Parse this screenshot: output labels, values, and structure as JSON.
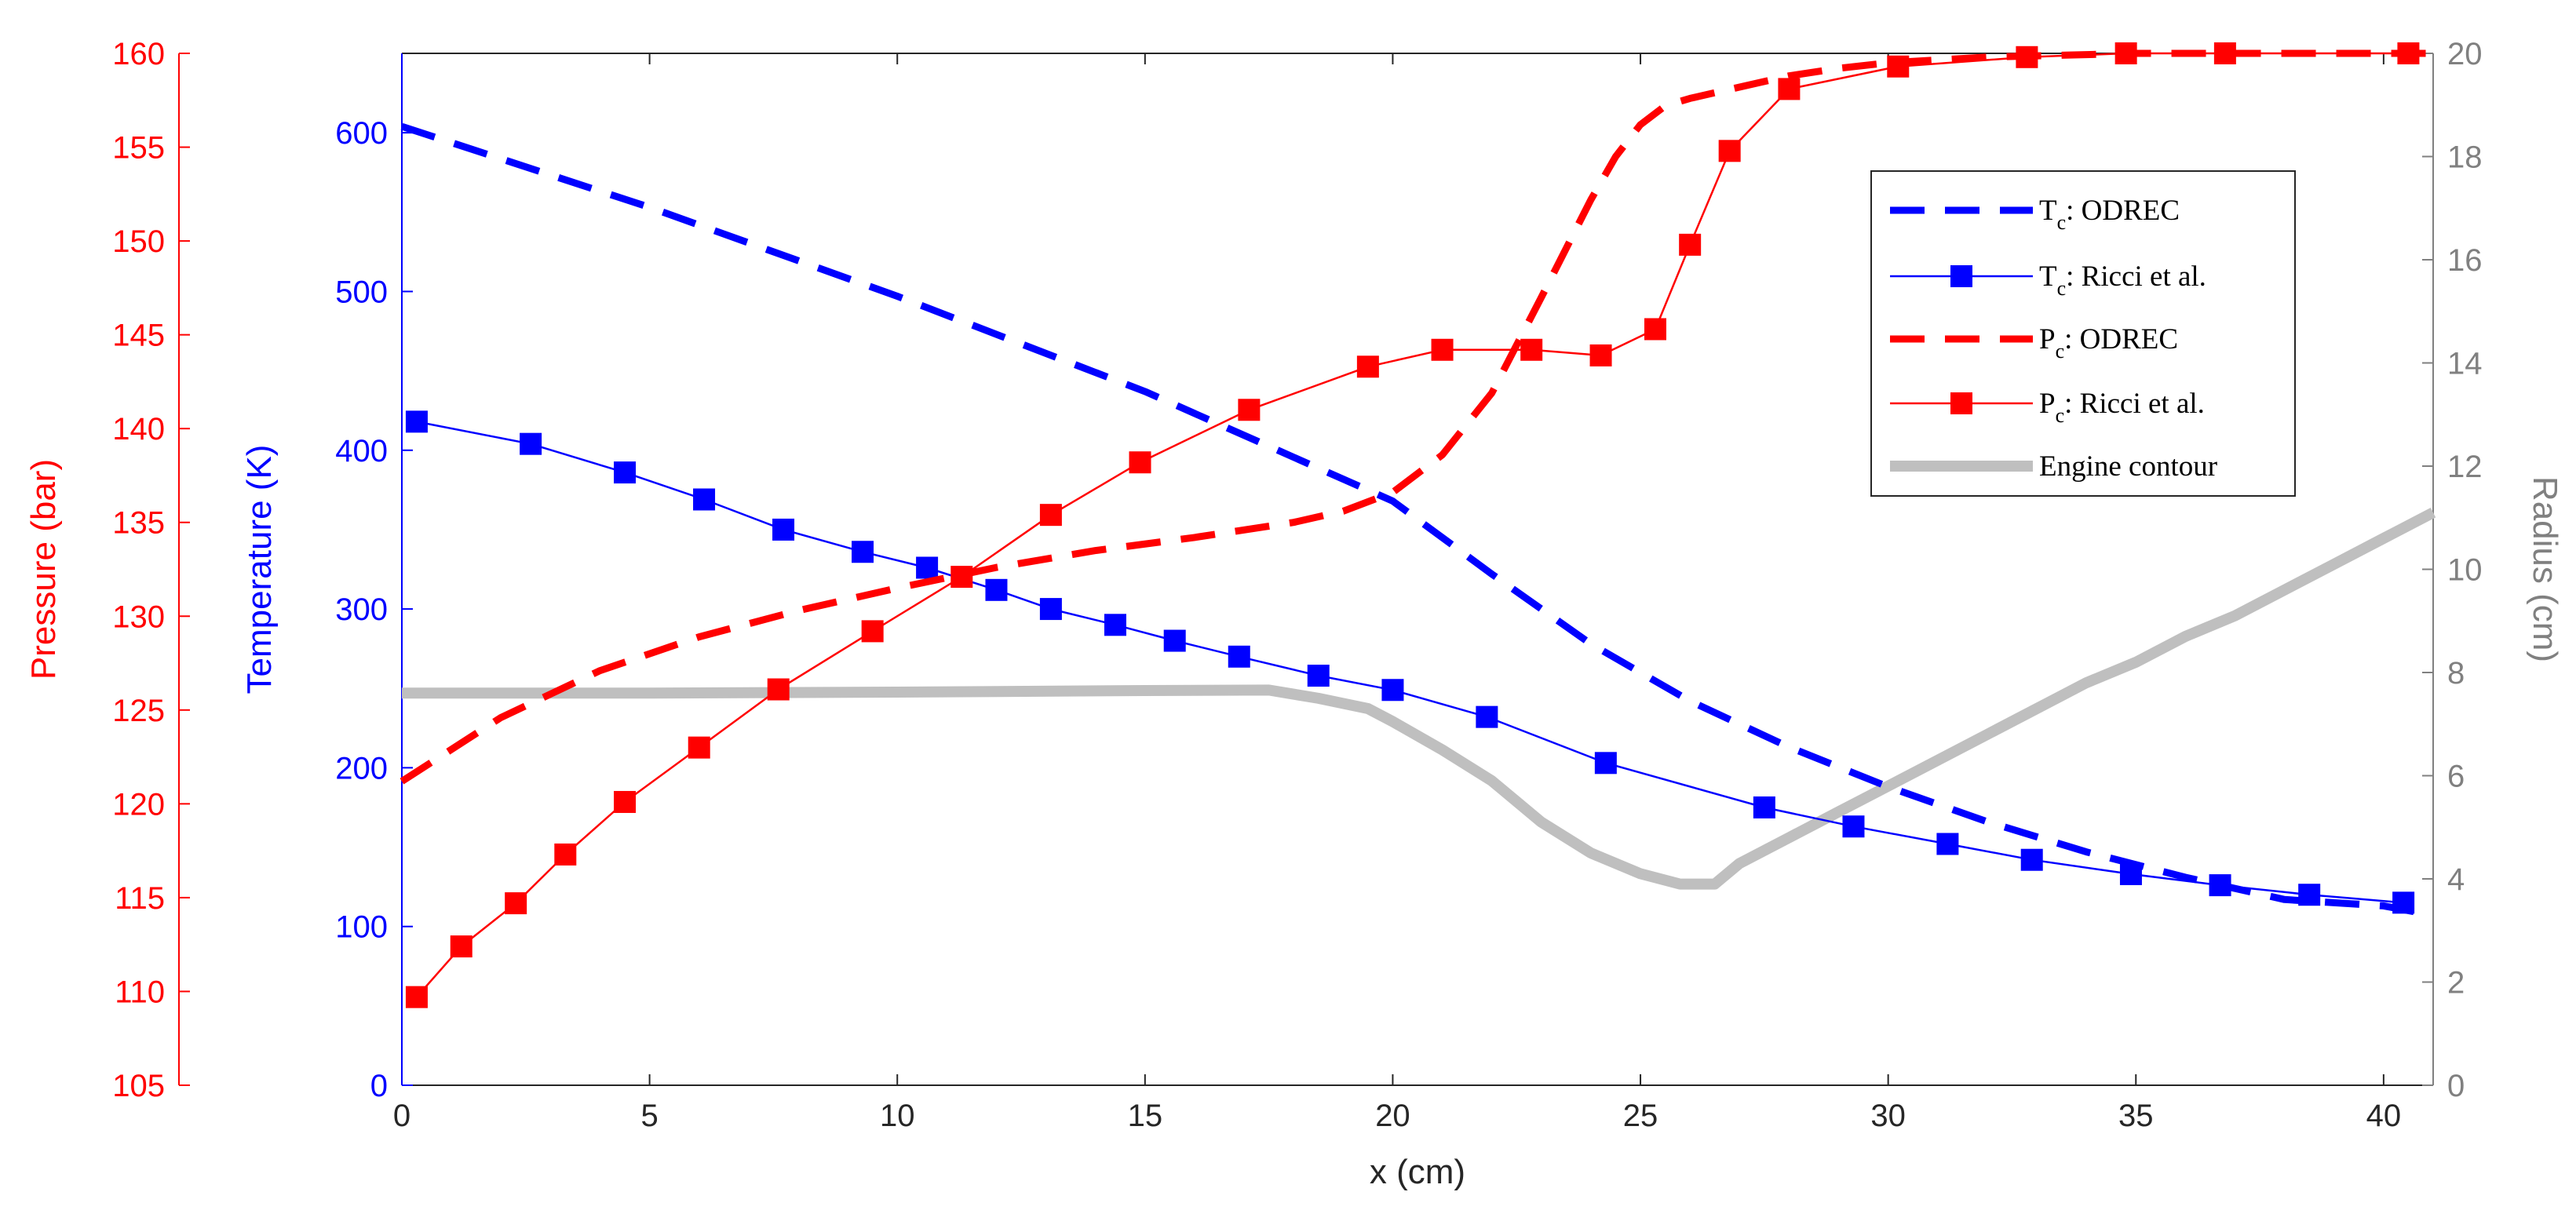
{
  "chart_data": {
    "type": "line",
    "title": "",
    "xlabel": "x (cm)",
    "xlim": [
      0,
      41
    ],
    "xticks": [
      0,
      5,
      10,
      15,
      20,
      25,
      30,
      35,
      40
    ],
    "axes": {
      "temperature": {
        "label": "Temperature (K)",
        "lim": [
          0,
          650
        ],
        "ticks": [
          0,
          100,
          200,
          300,
          400,
          500,
          600
        ],
        "color": "#0000ff"
      },
      "pressure": {
        "label": "Pressure (bar)",
        "lim": [
          105,
          160
        ],
        "ticks": [
          105,
          110,
          115,
          120,
          125,
          130,
          135,
          140,
          145,
          150,
          155,
          160
        ],
        "color": "#ff0000"
      },
      "radius": {
        "label": "Radius (cm)",
        "lim": [
          0,
          20
        ],
        "ticks": [
          0,
          2,
          4,
          6,
          8,
          10,
          12,
          14,
          16,
          18,
          20
        ],
        "color": "#808080"
      }
    },
    "legend": {
      "position": "top-right",
      "entries": [
        {
          "main": "T",
          "sub": "c",
          "rest": ": ODREC"
        },
        {
          "main": "T",
          "sub": "c",
          "rest": ": Ricci et al."
        },
        {
          "main": "P",
          "sub": "c",
          "rest": ": ODREC"
        },
        {
          "main": "P",
          "sub": "c",
          "rest": ": Ricci et al."
        },
        {
          "main": "Engine contour",
          "sub": "",
          "rest": ""
        }
      ]
    },
    "series": [
      {
        "name": "Tc: ODREC",
        "axis": "temperature",
        "color": "#0000ff",
        "style": "dashed",
        "marker": "none",
        "x": [
          0,
          5,
          10,
          15,
          20,
          22,
          24,
          26,
          28,
          30,
          32,
          34,
          36,
          38,
          40,
          41
        ],
        "y": [
          604,
          553,
          497,
          437,
          368,
          322,
          278,
          242,
          213,
          188,
          166,
          147,
          131,
          117,
          113,
          107
        ]
      },
      {
        "name": "Tc: Ricci et al.",
        "axis": "temperature",
        "color": "#0000ff",
        "style": "solid",
        "marker": "square",
        "x": [
          0.3,
          2.6,
          4.5,
          6.1,
          7.7,
          9.3,
          10.6,
          12,
          13.1,
          14.4,
          15.6,
          16.9,
          18.5,
          20,
          21.9,
          24.3,
          27.5,
          29.3,
          31.2,
          32.9,
          34.9,
          36.7,
          38.5,
          40.4
        ],
        "y": [
          418,
          404,
          386,
          369,
          350,
          336,
          326,
          312,
          300,
          290,
          280,
          270,
          258,
          249,
          232,
          203,
          175,
          163,
          152,
          142,
          133,
          126,
          120,
          115
        ]
      },
      {
        "name": "Pc: ODREC",
        "axis": "pressure",
        "color": "#ff0000",
        "style": "dashed",
        "marker": "none",
        "x": [
          0,
          2,
          4,
          6,
          8,
          10,
          12,
          14,
          16,
          18,
          19,
          20,
          21,
          22,
          23,
          24,
          24.5,
          25,
          25.5,
          26,
          27,
          28,
          29,
          30,
          32,
          35,
          41
        ],
        "y": [
          121.2,
          124.6,
          127.1,
          128.9,
          130.3,
          131.5,
          132.6,
          133.5,
          134.2,
          135.0,
          135.6,
          136.6,
          138.6,
          141.9,
          147.0,
          152.2,
          154.5,
          156.2,
          157.2,
          157.6,
          158.2,
          158.8,
          159.2,
          159.5,
          159.8,
          160,
          160
        ]
      },
      {
        "name": "Pc: Ricci et al.",
        "axis": "pressure",
        "color": "#ff0000",
        "style": "solid",
        "marker": "square",
        "x": [
          0.3,
          1.2,
          2.3,
          3.3,
          4.5,
          6,
          7.6,
          9.5,
          11.3,
          13.1,
          14.9,
          17.1,
          19.5,
          21,
          22.8,
          24.2,
          25.3,
          26,
          26.8,
          28,
          30.2,
          32.8,
          34.8,
          36.8,
          40.5
        ],
        "y": [
          109.7,
          112.4,
          114.7,
          117.3,
          120.1,
          123.0,
          126.1,
          129.2,
          132.1,
          135.4,
          138.2,
          141.0,
          143.3,
          144.2,
          144.2,
          143.9,
          145.3,
          149.8,
          154.8,
          158.1,
          159.3,
          159.8,
          160.0,
          160.0,
          160.0
        ]
      },
      {
        "name": "Engine contour",
        "axis": "radius",
        "color": "#bfbfbf",
        "style": "thick",
        "marker": "none",
        "x": [
          0,
          5,
          10,
          15,
          17.5,
          18.5,
          19.5,
          20,
          21,
          22,
          23,
          24,
          25,
          25.8,
          26.5,
          27,
          28,
          29,
          30,
          31,
          32,
          33,
          34,
          35,
          36,
          37,
          38,
          39,
          40,
          41
        ],
        "y": [
          7.6,
          7.6,
          7.62,
          7.65,
          7.66,
          7.5,
          7.3,
          7.05,
          6.5,
          5.9,
          5.1,
          4.5,
          4.1,
          3.9,
          3.9,
          4.3,
          4.8,
          5.3,
          5.8,
          6.3,
          6.8,
          7.3,
          7.8,
          8.2,
          8.7,
          9.1,
          9.6,
          10.1,
          10.6,
          11.1
        ]
      }
    ]
  }
}
